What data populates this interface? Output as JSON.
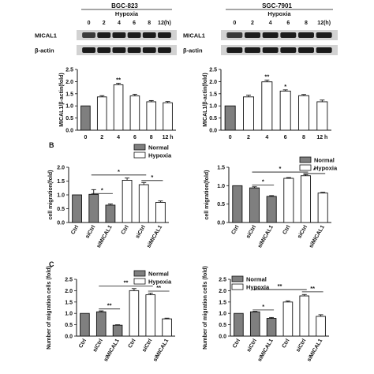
{
  "panel_labels": {
    "b": "B",
    "c": "C"
  },
  "blots": [
    {
      "cell_line": "BGC-823",
      "condition": "Hypoxia",
      "times": [
        "0",
        "2",
        "4",
        "6",
        "8",
        "12(h)"
      ],
      "rows": [
        "MICAL1",
        "β-actin"
      ]
    },
    {
      "cell_line": "SGC-7901",
      "condition": "Hypoxia",
      "times": [
        "0",
        "2",
        "4",
        "6",
        "8",
        "12(h)"
      ],
      "rows": [
        "MICAL1",
        "β-actin"
      ]
    }
  ],
  "legend": {
    "normal": "Normal",
    "hypoxia": "Hypoxia"
  },
  "colors": {
    "normal": "#7f7f7f",
    "hypoxia": "#ffffff",
    "stroke": "#111111"
  },
  "chart_data": [
    {
      "id": "a-left",
      "type": "bar",
      "categories": [
        "0",
        "2",
        "4",
        "6",
        "8",
        "12 h"
      ],
      "values": [
        1.0,
        1.37,
        1.87,
        1.41,
        1.17,
        1.13
      ],
      "errors": [
        0,
        0.05,
        0.06,
        0.07,
        0.05,
        0.05
      ],
      "fills": [
        "normal",
        "hypoxia",
        "hypoxia",
        "hypoxia",
        "hypoxia",
        "hypoxia"
      ],
      "ylabel": "MICAL1/β-actin(fold)",
      "ylim": [
        0,
        2.5
      ],
      "yticks": [
        "0.0",
        "0.5",
        "1.0",
        "1.5",
        "2.0",
        "2.5"
      ],
      "sig": [
        {
          "bar": 2,
          "text": "**"
        }
      ]
    },
    {
      "id": "a-right",
      "type": "bar",
      "categories": [
        "0",
        "2",
        "4",
        "6",
        "8",
        "12 h"
      ],
      "values": [
        1.0,
        1.37,
        1.99,
        1.61,
        1.42,
        1.17
      ],
      "errors": [
        0,
        0.07,
        0.07,
        0.05,
        0.05,
        0.07
      ],
      "fills": [
        "normal",
        "hypoxia",
        "hypoxia",
        "hypoxia",
        "hypoxia",
        "hypoxia"
      ],
      "ylabel": "MICAL1/β-actin(fold)",
      "ylim": [
        0,
        2.5
      ],
      "yticks": [
        "0.0",
        "0.5",
        "1.0",
        "1.5",
        "2.0",
        "2.5"
      ],
      "sig": [
        {
          "bar": 2,
          "text": "**"
        },
        {
          "bar": 3,
          "text": "*"
        }
      ]
    },
    {
      "id": "b-left",
      "type": "bar",
      "categories": [
        "Ctrl",
        "siCtrl",
        "siMICAL1",
        "Ctrl",
        "siCtrl",
        "siMICAL1"
      ],
      "values": [
        1.0,
        1.02,
        0.63,
        1.53,
        1.37,
        0.73
      ],
      "errors": [
        0,
        0.17,
        0.04,
        0.08,
        0.08,
        0.05
      ],
      "fills": [
        "normal",
        "normal",
        "normal",
        "hypoxia",
        "hypoxia",
        "hypoxia"
      ],
      "ylabel": "cell migration(fold)",
      "ylim": [
        0,
        2.0
      ],
      "yticks": [
        "0.0",
        "0.5",
        "1.0",
        "1.5",
        "2.0"
      ],
      "brackets": [
        {
          "from": 1,
          "to": 2,
          "y": 1.05,
          "text": "*"
        },
        {
          "from": 1,
          "to": 4,
          "y": 1.72,
          "text": "*"
        },
        {
          "from": 4,
          "to": 5,
          "y": 1.52,
          "text": "*"
        }
      ],
      "legend": true
    },
    {
      "id": "b-right",
      "type": "bar",
      "categories": [
        "Ctrl",
        "siCtrl",
        "siMICAL1",
        "Ctrl",
        "siCtrl",
        "siMICAL1"
      ],
      "values": [
        1.0,
        0.94,
        0.71,
        1.2,
        1.27,
        0.8
      ],
      "errors": [
        0,
        0.03,
        0.02,
        0.02,
        0.03,
        0.02
      ],
      "fills": [
        "normal",
        "normal",
        "normal",
        "hypoxia",
        "hypoxia",
        "hypoxia"
      ],
      "ylabel": "cell migration(fold)",
      "ylim": [
        0,
        1.5
      ],
      "yticks": [
        "0.0",
        "0.5",
        "1.0",
        "1.5"
      ],
      "brackets": [
        {
          "from": 1,
          "to": 2,
          "y": 1.02,
          "text": "*"
        },
        {
          "from": 1,
          "to": 4,
          "y": 1.37,
          "text": "*"
        },
        {
          "from": 4,
          "to": 5,
          "y": 1.33,
          "text": "*"
        }
      ],
      "legend": true
    },
    {
      "id": "c-left",
      "type": "bar",
      "categories": [
        "Ctrl",
        "siCtrl",
        "siMICAL1",
        "Ctrl",
        "siCtrl",
        "siMICAL1"
      ],
      "values": [
        1.0,
        1.07,
        0.48,
        2.0,
        1.82,
        0.76
      ],
      "errors": [
        0,
        0.04,
        0.02,
        0.09,
        0.07,
        0.03
      ],
      "fills": [
        "normal",
        "normal",
        "normal",
        "hypoxia",
        "hypoxia",
        "hypoxia"
      ],
      "ylabel": "Number of migration cells (fold)",
      "ylim": [
        0,
        2.5
      ],
      "yticks": [
        "0.0",
        "0.5",
        "1.0",
        "1.5",
        "2.0",
        "2.5"
      ],
      "brackets": [
        {
          "from": 1,
          "to": 2,
          "y": 1.2,
          "text": "**"
        },
        {
          "from": 1,
          "to": 4,
          "y": 2.2,
          "text": "**"
        },
        {
          "from": 4,
          "to": 5,
          "y": 1.98,
          "text": "**"
        }
      ],
      "legend": true
    },
    {
      "id": "c-right",
      "type": "bar",
      "categories": [
        "Ctrl",
        "siCtrl",
        "siMICAL1",
        "Ctrl",
        "siCtrl",
        "siMICAL1"
      ],
      "values": [
        1.0,
        1.07,
        0.78,
        1.5,
        1.77,
        0.87
      ],
      "errors": [
        0,
        0.02,
        0.04,
        0.05,
        0.06,
        0.07
      ],
      "fills": [
        "normal",
        "normal",
        "normal",
        "hypoxia",
        "hypoxia",
        "hypoxia"
      ],
      "ylabel": "Number of migration cells (fold)",
      "ylim": [
        0,
        2.5
      ],
      "yticks": [
        "0.0",
        "0.5",
        "1.0",
        "1.5",
        "2.0",
        "2.5"
      ],
      "brackets": [
        {
          "from": 1,
          "to": 2,
          "y": 1.15,
          "text": "*"
        },
        {
          "from": 1,
          "to": 4,
          "y": 2.05,
          "text": "**"
        },
        {
          "from": 4,
          "to": 5,
          "y": 1.95,
          "text": "**"
        }
      ],
      "legend": true
    }
  ]
}
